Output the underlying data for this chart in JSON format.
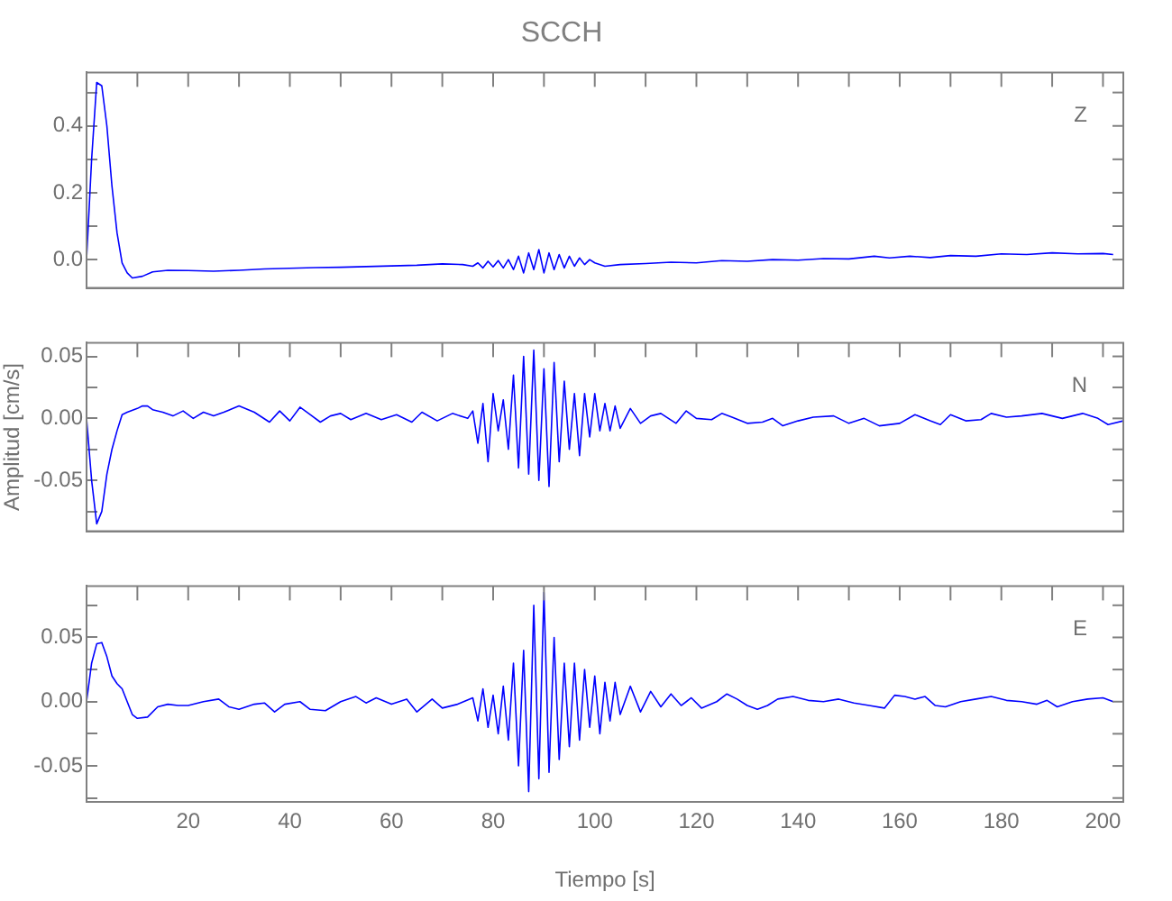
{
  "chart_data": [
    {
      "type": "line",
      "title": "SCCH",
      "annotations": [
        "Z"
      ],
      "tick_labels": "y",
      "x": [
        0,
        1,
        2,
        3,
        4,
        5,
        6,
        7,
        8,
        9,
        11,
        13,
        16,
        20,
        25,
        30,
        35,
        40,
        45,
        50,
        55,
        60,
        65,
        70,
        74,
        76,
        77,
        78,
        79,
        80,
        81,
        82,
        83,
        84,
        85,
        86,
        87,
        88,
        89,
        90,
        91,
        92,
        93,
        94,
        95,
        96,
        97,
        98,
        99,
        100,
        102,
        105,
        110,
        115,
        120,
        125,
        130,
        135,
        140,
        145,
        150,
        155,
        158,
        162,
        166,
        170,
        175,
        180,
        185,
        190,
        195,
        200,
        202
      ],
      "series": [
        {
          "color": "#0000ff",
          "values": [
            0,
            0.3,
            0.53,
            0.52,
            0.4,
            0.22,
            0.08,
            -0.01,
            -0.04,
            -0.055,
            -0.05,
            -0.037,
            -0.032,
            -0.033,
            -0.035,
            -0.032,
            -0.028,
            -0.026,
            -0.024,
            -0.023,
            -0.021,
            -0.019,
            -0.017,
            -0.013,
            -0.015,
            -0.02,
            -0.01,
            -0.025,
            -0.005,
            -0.022,
            -0.003,
            -0.025,
            0,
            -0.03,
            0.01,
            -0.04,
            0.02,
            -0.03,
            0.03,
            -0.04,
            0.02,
            -0.03,
            0.015,
            -0.025,
            0.01,
            -0.02,
            0.005,
            -0.015,
            0,
            -0.01,
            -0.02,
            -0.015,
            -0.012,
            -0.008,
            -0.01,
            -0.003,
            -0.005,
            0,
            -0.002,
            0.003,
            0.002,
            0.01,
            0.005,
            0.01,
            0.006,
            0.012,
            0.01,
            0.017,
            0.015,
            0.02,
            0.017,
            0.018,
            0.015
          ]
        }
      ],
      "xlim": [
        0,
        204
      ],
      "xticks": [
        {
          "value": 10,
          "label": null
        },
        {
          "value": 20,
          "label": null
        },
        {
          "value": 30,
          "label": null
        },
        {
          "value": 40,
          "label": null
        },
        {
          "value": 50,
          "label": null
        },
        {
          "value": 60,
          "label": null
        },
        {
          "value": 70,
          "label": null
        },
        {
          "value": 80,
          "label": null
        },
        {
          "value": 90,
          "label": null
        },
        {
          "value": 100,
          "label": null
        },
        {
          "value": 110,
          "label": null
        },
        {
          "value": 120,
          "label": null
        },
        {
          "value": 130,
          "label": null
        },
        {
          "value": 140,
          "label": null
        },
        {
          "value": 150,
          "label": null
        },
        {
          "value": 160,
          "label": null
        },
        {
          "value": 170,
          "label": null
        },
        {
          "value": 180,
          "label": null
        },
        {
          "value": 190,
          "label": null
        },
        {
          "value": 200,
          "label": null
        }
      ],
      "ylim": [
        -0.085,
        0.56
      ],
      "yticks": [
        {
          "value": 0,
          "label": "0.0"
        },
        {
          "value": 0.1,
          "label": null
        },
        {
          "value": 0.2,
          "label": "0.2"
        },
        {
          "value": 0.3,
          "label": null
        },
        {
          "value": 0.4,
          "label": "0.4"
        },
        {
          "value": 0.5,
          "label": null
        }
      ]
    },
    {
      "type": "line",
      "ylabel": "Amplitud [cm/s]",
      "annotations": [
        "N"
      ],
      "tick_labels": "y",
      "x": [
        0,
        1,
        2,
        3,
        4,
        5,
        6,
        7,
        8,
        10,
        11,
        12,
        13,
        15,
        17,
        19,
        21,
        23,
        25,
        27,
        30,
        33,
        36,
        38,
        40,
        42,
        44,
        46,
        48,
        50,
        52,
        55,
        58,
        61,
        64,
        66,
        69,
        72,
        75,
        76,
        77,
        78,
        79,
        80,
        81,
        82,
        83,
        84,
        85,
        86,
        87,
        88,
        89,
        90,
        91,
        92,
        93,
        94,
        95,
        96,
        97,
        98,
        99,
        100,
        101,
        102,
        103,
        104,
        105,
        107,
        109,
        111,
        113,
        116,
        118,
        120,
        123,
        125,
        127,
        130,
        133,
        135,
        137,
        140,
        143,
        147,
        150,
        153,
        156,
        160,
        163,
        166,
        168,
        170,
        173,
        176,
        178,
        181,
        184,
        188,
        190,
        192,
        196,
        199,
        201,
        204
      ],
      "series": [
        {
          "color": "#0000ff",
          "values": [
            0,
            -0.05,
            -0.085,
            -0.075,
            -0.045,
            -0.025,
            -0.01,
            0.003,
            0.005,
            0.008,
            0.01,
            0.01,
            0.007,
            0.005,
            0.002,
            0.006,
            0,
            0.005,
            0.002,
            0.005,
            0.01,
            0.005,
            -0.003,
            0.006,
            -0.002,
            0.009,
            0.003,
            -0.003,
            0.002,
            0.004,
            -0.001,
            0.004,
            -0.001,
            0.003,
            -0.003,
            0.005,
            -0.002,
            0.004,
            0,
            0.006,
            -0.02,
            0.012,
            -0.035,
            0.02,
            -0.01,
            0.015,
            -0.025,
            0.035,
            -0.04,
            0.05,
            -0.045,
            0.055,
            -0.05,
            0.04,
            -0.055,
            0.045,
            -0.035,
            0.03,
            -0.025,
            0.02,
            -0.03,
            0.02,
            -0.015,
            0.02,
            -0.01,
            0.012,
            -0.01,
            0.01,
            -0.008,
            0.008,
            -0.004,
            0.002,
            0.004,
            -0.004,
            0.006,
            0,
            -0.001,
            0.004,
            0.001,
            -0.004,
            -0.003,
            0,
            -0.006,
            -0.002,
            0.001,
            0.002,
            -0.004,
            0,
            -0.006,
            -0.004,
            0.003,
            -0.002,
            -0.005,
            0.003,
            -0.002,
            -0.001,
            0.004,
            0.001,
            0.002,
            0.004,
            0.002,
            0,
            0.004,
            0,
            -0.005,
            -0.002
          ]
        }
      ],
      "xlim": [
        0,
        204
      ],
      "xticks": [
        {
          "value": 10,
          "label": null
        },
        {
          "value": 20,
          "label": null
        },
        {
          "value": 30,
          "label": null
        },
        {
          "value": 40,
          "label": null
        },
        {
          "value": 50,
          "label": null
        },
        {
          "value": 60,
          "label": null
        },
        {
          "value": 70,
          "label": null
        },
        {
          "value": 80,
          "label": null
        },
        {
          "value": 90,
          "label": null
        },
        {
          "value": 100,
          "label": null
        },
        {
          "value": 110,
          "label": null
        },
        {
          "value": 120,
          "label": null
        },
        {
          "value": 130,
          "label": null
        },
        {
          "value": 140,
          "label": null
        },
        {
          "value": 150,
          "label": null
        },
        {
          "value": 160,
          "label": null
        },
        {
          "value": 170,
          "label": null
        },
        {
          "value": 180,
          "label": null
        },
        {
          "value": 190,
          "label": null
        },
        {
          "value": 200,
          "label": null
        }
      ],
      "ylim": [
        -0.091,
        0.061
      ],
      "yticks": [
        {
          "value": -0.075,
          "label": null
        },
        {
          "value": -0.05,
          "label": "-0.05"
        },
        {
          "value": -0.025,
          "label": null
        },
        {
          "value": 0,
          "label": "0.00"
        },
        {
          "value": 0.025,
          "label": null
        },
        {
          "value": 0.05,
          "label": "0.05"
        }
      ]
    },
    {
      "type": "line",
      "xlabel": "Tiempo [s]",
      "annotations": [
        "E"
      ],
      "x": [
        0,
        1,
        2,
        3,
        4,
        5,
        6,
        7,
        8,
        9,
        10,
        12,
        14,
        16,
        18,
        20,
        23,
        26,
        28,
        30,
        33,
        35,
        37,
        39,
        42,
        44,
        47,
        50,
        53,
        55,
        57,
        60,
        63,
        65,
        68,
        70,
        73,
        76,
        77,
        78,
        79,
        80,
        81,
        82,
        83,
        84,
        85,
        86,
        87,
        88,
        89,
        90,
        91,
        92,
        93,
        94,
        95,
        96,
        97,
        98,
        99,
        100,
        101,
        102,
        103,
        104,
        105,
        107,
        109,
        111,
        113,
        115,
        117,
        119,
        121,
        124,
        126,
        128,
        130,
        132,
        134,
        136,
        139,
        142,
        145,
        148,
        151,
        154,
        157,
        159,
        161,
        163,
        165,
        167,
        169,
        172,
        175,
        178,
        181,
        184,
        187,
        189,
        191,
        194,
        197,
        200,
        202
      ],
      "series": [
        {
          "color": "#0000ff",
          "values": [
            0,
            0.03,
            0.045,
            0.046,
            0.035,
            0.02,
            0.014,
            0.01,
            0,
            -0.01,
            -0.013,
            -0.012,
            -0.004,
            -0.002,
            -0.003,
            -0.003,
            0,
            0.002,
            -0.004,
            -0.006,
            -0.002,
            -0.001,
            -0.008,
            -0.002,
            0,
            -0.006,
            -0.007,
            0,
            0.004,
            -0.001,
            0.003,
            -0.002,
            0.002,
            -0.008,
            0.002,
            -0.005,
            -0.002,
            0.003,
            -0.015,
            0.01,
            -0.02,
            0.005,
            -0.025,
            0.012,
            -0.03,
            0.03,
            -0.05,
            0.04,
            -0.07,
            0.075,
            -0.06,
            0.085,
            -0.055,
            0.05,
            -0.045,
            0.03,
            -0.035,
            0.03,
            -0.03,
            0.025,
            -0.02,
            0.02,
            -0.025,
            0.015,
            -0.015,
            0.015,
            -0.01,
            0.012,
            -0.008,
            0.008,
            -0.004,
            0.006,
            -0.003,
            0.003,
            -0.005,
            0,
            0.006,
            0.002,
            -0.003,
            -0.006,
            -0.003,
            0.002,
            0.004,
            0.001,
            0,
            0.002,
            -0.001,
            -0.003,
            -0.005,
            0.005,
            0.004,
            0.002,
            0.004,
            -0.003,
            -0.004,
            0,
            0.002,
            0.004,
            0.001,
            0,
            -0.002,
            0.001,
            -0.004,
            0,
            0.002,
            0.003,
            0
          ]
        }
      ],
      "xlim": [
        0,
        204
      ],
      "xticks": [
        {
          "value": 10,
          "label": null
        },
        20,
        {
          "value": 30,
          "label": null
        },
        40,
        {
          "value": 50,
          "label": null
        },
        60,
        {
          "value": 70,
          "label": null
        },
        80,
        {
          "value": 90,
          "label": null
        },
        100,
        {
          "value": 110,
          "label": null
        },
        120,
        {
          "value": 130,
          "label": null
        },
        140,
        {
          "value": 150,
          "label": null
        },
        160,
        {
          "value": 170,
          "label": null
        },
        180,
        {
          "value": 190,
          "label": null
        },
        200
      ],
      "ylim": [
        -0.078,
        0.09
      ],
      "yticks": [
        {
          "value": -0.075,
          "label": null
        },
        {
          "value": -0.05,
          "label": "-0.05"
        },
        {
          "value": -0.025,
          "label": null
        },
        {
          "value": 0,
          "label": "0.00"
        },
        {
          "value": 0.025,
          "label": null
        },
        {
          "value": 0.05,
          "label": "0.05"
        },
        {
          "value": 0.075,
          "label": null
        }
      ]
    }
  ]
}
